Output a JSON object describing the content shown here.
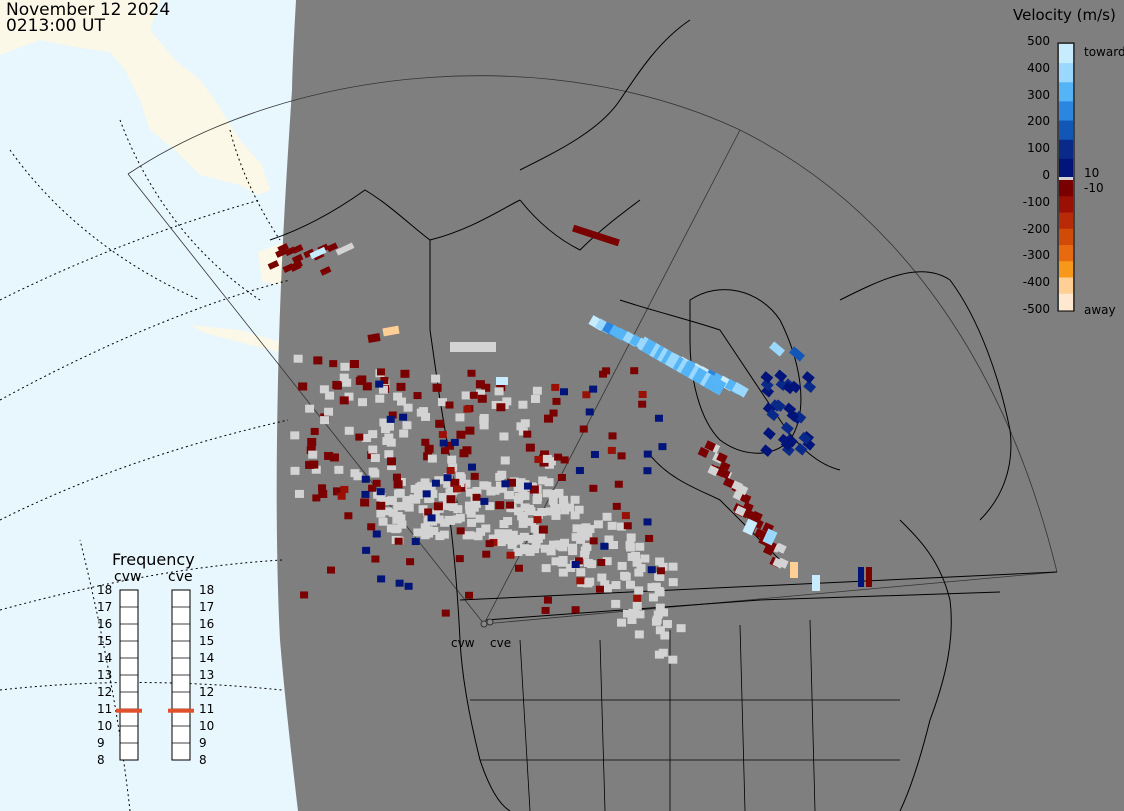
{
  "header": {
    "date": "November 12 2024",
    "time": "0213:00 UT"
  },
  "colorbar": {
    "title": "Velocity (m/s)",
    "ticks": [
      "500",
      "400",
      "300",
      "200",
      "100",
      "0",
      "-100",
      "-200",
      "-300",
      "-400",
      "-500"
    ],
    "side_top": "toward",
    "side_bottom": "away",
    "near_zero_pos": "10",
    "near_zero_neg": "-10",
    "colors": {
      "toward": [
        "#c8ecff",
        "#9ad8ff",
        "#55b4f5",
        "#2a86e0",
        "#1256b8",
        "#0a2a8a",
        "#00147a"
      ],
      "away": [
        "#7a0000",
        "#9a1005",
        "#b82a08",
        "#d04a08",
        "#e86a10",
        "#f8981a",
        "#ffcf96",
        "#ffe8d0"
      ]
    }
  },
  "frequency": {
    "title": "Frequency",
    "radars": [
      "cvw",
      "cve"
    ],
    "ticks": [
      "18",
      "17",
      "16",
      "15",
      "14",
      "13",
      "12",
      "11",
      "10",
      "9",
      "8"
    ],
    "cvw_mhz": 10.9,
    "cve_mhz": 10.9,
    "marker_color": "#e0502a"
  },
  "sites": {
    "cvw": "cvw",
    "cve": "cve"
  },
  "map_colors": {
    "land": "#7f7f7f",
    "ocean": "#e8f6fe",
    "sunlit_land": "#fbf8e7",
    "ground_scatter": "#d3d3d3"
  }
}
